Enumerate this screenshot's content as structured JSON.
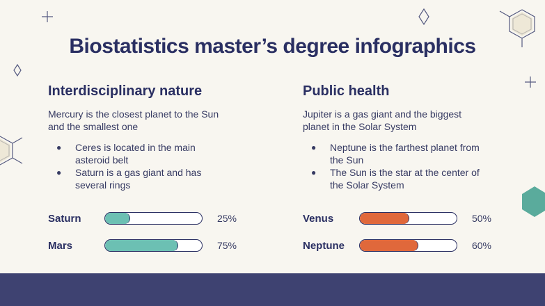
{
  "title": "Biostatistics master’s degree infographics",
  "columns": [
    {
      "heading": "Interdisciplinary nature",
      "text": "Mercury is the closest planet to the Sun and the smallest one",
      "bullets": [
        "Ceres is located in the main asteroid belt",
        "Saturn is a gas giant and has several rings"
      ],
      "color": "#6cc0b3",
      "bars": [
        {
          "name": "Saturn",
          "value": 25,
          "label": "25%"
        },
        {
          "name": "Mars",
          "value": 75,
          "label": "75%"
        }
      ]
    },
    {
      "heading": "Public health",
      "text": "Jupiter is a gas giant and the biggest planet in the Solar System",
      "bullets": [
        "Neptune is the farthest planet from the Sun",
        "The Sun is the star at the center of the Solar System"
      ],
      "color": "#e0683b",
      "bars": [
        {
          "name": "Venus",
          "value": 50,
          "label": "50%"
        },
        {
          "name": "Neptune",
          "value": 60,
          "label": "60%"
        }
      ]
    }
  ]
}
